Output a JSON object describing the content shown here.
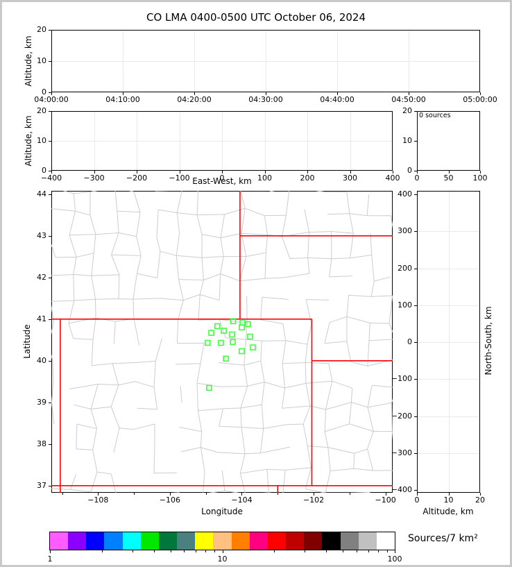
{
  "header": {
    "title": "CO LMA 0400-0500 UTC October 06, 2024"
  },
  "axes": {
    "altitude": "Altitude, km",
    "east_west": "East-West, km",
    "latitude": "Latitude",
    "longitude": "Longitude",
    "north_south": "North-South, km"
  },
  "colors": {
    "state_border": "#ff0000",
    "county_line": "#cccccc",
    "station_marker": "#3dff3d",
    "grid": "#e9e9e9",
    "spine": "#000000"
  },
  "chart_data": [
    {
      "id": "time_height",
      "type": "scatter",
      "description": "Altitude vs time panel, no source points plotted",
      "points": [],
      "ylabel": "Altitude, km",
      "xlim": [
        0,
        3600
      ],
      "xticks": [
        0,
        600,
        1200,
        1800,
        2400,
        3000,
        3600
      ],
      "xtick_labels": [
        "04:00:00",
        "04:10:00",
        "04:20:00",
        "04:30:00",
        "04:40:00",
        "04:50:00",
        "05:00:00"
      ],
      "ylim": [
        0,
        20
      ],
      "yticks": [
        0,
        10,
        20
      ],
      "ytick_labels": [
        "0",
        "10",
        "20"
      ],
      "grid_x": [
        600,
        1200,
        1800,
        2400,
        3000
      ],
      "grid_y": [
        10
      ]
    },
    {
      "id": "ew_height",
      "type": "scatter",
      "description": "Altitude vs East-West distance panel, no source points plotted",
      "points": [],
      "xlabel": "East-West, km",
      "ylabel": "Altitude, km",
      "xlim": [
        -400,
        400
      ],
      "xticks": [
        -400,
        -300,
        -200,
        -100,
        0,
        100,
        200,
        300,
        400
      ],
      "xtick_labels": [
        "−400",
        "−300",
        "−200",
        "−100",
        "0",
        "100",
        "200",
        "300",
        "400"
      ],
      "ylim": [
        0,
        20
      ],
      "yticks": [
        0,
        10,
        20
      ],
      "ytick_labels": [
        "0",
        "10",
        "20"
      ],
      "grid_x": [
        -300,
        -200,
        -100,
        0,
        100,
        200,
        300
      ],
      "grid_y": [
        10
      ]
    },
    {
      "id": "alt_hist",
      "type": "histogram",
      "description": "Altitude histogram of sources",
      "annotation": "0 sources",
      "source_count": 0,
      "values": [],
      "xlim": [
        0,
        100
      ],
      "xticks": [
        0,
        50,
        100
      ],
      "xtick_labels": [
        "0",
        "50",
        "100"
      ],
      "ylim": [
        0,
        20
      ],
      "yticks": [
        0,
        10,
        20
      ],
      "ytick_labels": [
        "0",
        "10",
        "20"
      ],
      "grid_x": [],
      "grid_y": []
    },
    {
      "id": "plan_view",
      "type": "scatter",
      "description": "Plan-view map: Colorado region county lines (gray), state borders (red), LMA station markers (green squares), no lightning sources",
      "xlabel": "Longitude",
      "ylabel": "Latitude",
      "xlim": [
        -109.3,
        -99.8
      ],
      "ylim": [
        36.83,
        44.08
      ],
      "xticks": [
        -108,
        -106,
        -104,
        -102,
        -100
      ],
      "xtick_labels": [
        "−108",
        "−106",
        "−104",
        "−102",
        "−100"
      ],
      "xminor_ticks": [
        -109,
        -107,
        -105,
        -103,
        -101
      ],
      "yticks": [
        44,
        43,
        42,
        41,
        40,
        39,
        38,
        37
      ],
      "ytick_labels": [
        "44",
        "43",
        "42",
        "41",
        "40",
        "39",
        "38",
        "37"
      ],
      "grid_x": [],
      "grid_y": [],
      "sources": [],
      "stations": [
        {
          "lon": -104.68,
          "lat": 40.83
        },
        {
          "lon": -104.24,
          "lat": 40.95
        },
        {
          "lon": -103.98,
          "lat": 40.92
        },
        {
          "lon": -103.83,
          "lat": 40.88
        },
        {
          "lon": -104.0,
          "lat": 40.8
        },
        {
          "lon": -104.85,
          "lat": 40.67
        },
        {
          "lon": -104.5,
          "lat": 40.72
        },
        {
          "lon": -104.27,
          "lat": 40.63
        },
        {
          "lon": -103.77,
          "lat": 40.58
        },
        {
          "lon": -104.95,
          "lat": 40.43
        },
        {
          "lon": -104.58,
          "lat": 40.43
        },
        {
          "lon": -104.25,
          "lat": 40.45
        },
        {
          "lon": -103.69,
          "lat": 40.32
        },
        {
          "lon": -104.0,
          "lat": 40.23
        },
        {
          "lon": -104.44,
          "lat": 40.05
        },
        {
          "lon": -104.91,
          "lat": 39.35
        }
      ],
      "state_borders": [
        [
          [
            -109.3,
            41.0
          ],
          [
            -102.05,
            41.0
          ]
        ],
        [
          [
            -109.05,
            41.0
          ],
          [
            -109.05,
            36.83
          ]
        ],
        [
          [
            -109.3,
            37.0
          ],
          [
            -99.8,
            37.0
          ]
        ],
        [
          [
            -104.05,
            44.08
          ],
          [
            -104.05,
            41.0
          ]
        ],
        [
          [
            -104.05,
            43.0
          ],
          [
            -99.8,
            43.0
          ]
        ],
        [
          [
            -102.05,
            41.0
          ],
          [
            -102.05,
            37.0
          ]
        ],
        [
          [
            -102.05,
            40.0
          ],
          [
            -99.8,
            40.0
          ]
        ],
        [
          [
            -103.0,
            37.0
          ],
          [
            -103.0,
            36.83
          ]
        ]
      ]
    },
    {
      "id": "ns_height",
      "type": "scatter",
      "description": "North-South distance vs altitude panel, no source points plotted",
      "points": [],
      "xlabel": "Altitude, km",
      "ylabel_right": "North-South, km",
      "xlim": [
        0,
        20
      ],
      "xticks": [
        0,
        10,
        20
      ],
      "xtick_labels": [
        "0",
        "10",
        "20"
      ],
      "ylim": [
        -407.5,
        409.4
      ],
      "yticks": [
        400,
        300,
        200,
        100,
        0,
        -100,
        -200,
        -300,
        -400
      ],
      "ytick_labels": [
        "400",
        "300",
        "200",
        "100",
        "0",
        "−100",
        "−200",
        "−300",
        "−400"
      ],
      "grid_x": [
        10
      ],
      "grid_y": [
        -300,
        -200,
        -100,
        0,
        100,
        200,
        300
      ]
    }
  ],
  "colorbar": {
    "label": "Sources/7 km²",
    "scale": "log",
    "range": [
      1,
      100
    ],
    "major_ticks": [
      1,
      10,
      100
    ],
    "tick_labels": [
      "1",
      "10",
      "100"
    ],
    "minor_ticks": [
      2,
      3,
      4,
      5,
      6,
      7,
      8,
      9,
      20,
      30,
      40,
      50,
      60,
      70,
      80,
      90
    ],
    "segment_colors": [
      "#ff5cff",
      "#8b00ff",
      "#0000ff",
      "#0080ff",
      "#00ffff",
      "#00e800",
      "#00783c",
      "#4a8080",
      "#ffff00",
      "#ffc080",
      "#ff8000",
      "#ff0080",
      "#ff0000",
      "#c00000",
      "#800000",
      "#000000",
      "#808080",
      "#c0c0c0",
      "#ffffff"
    ]
  }
}
